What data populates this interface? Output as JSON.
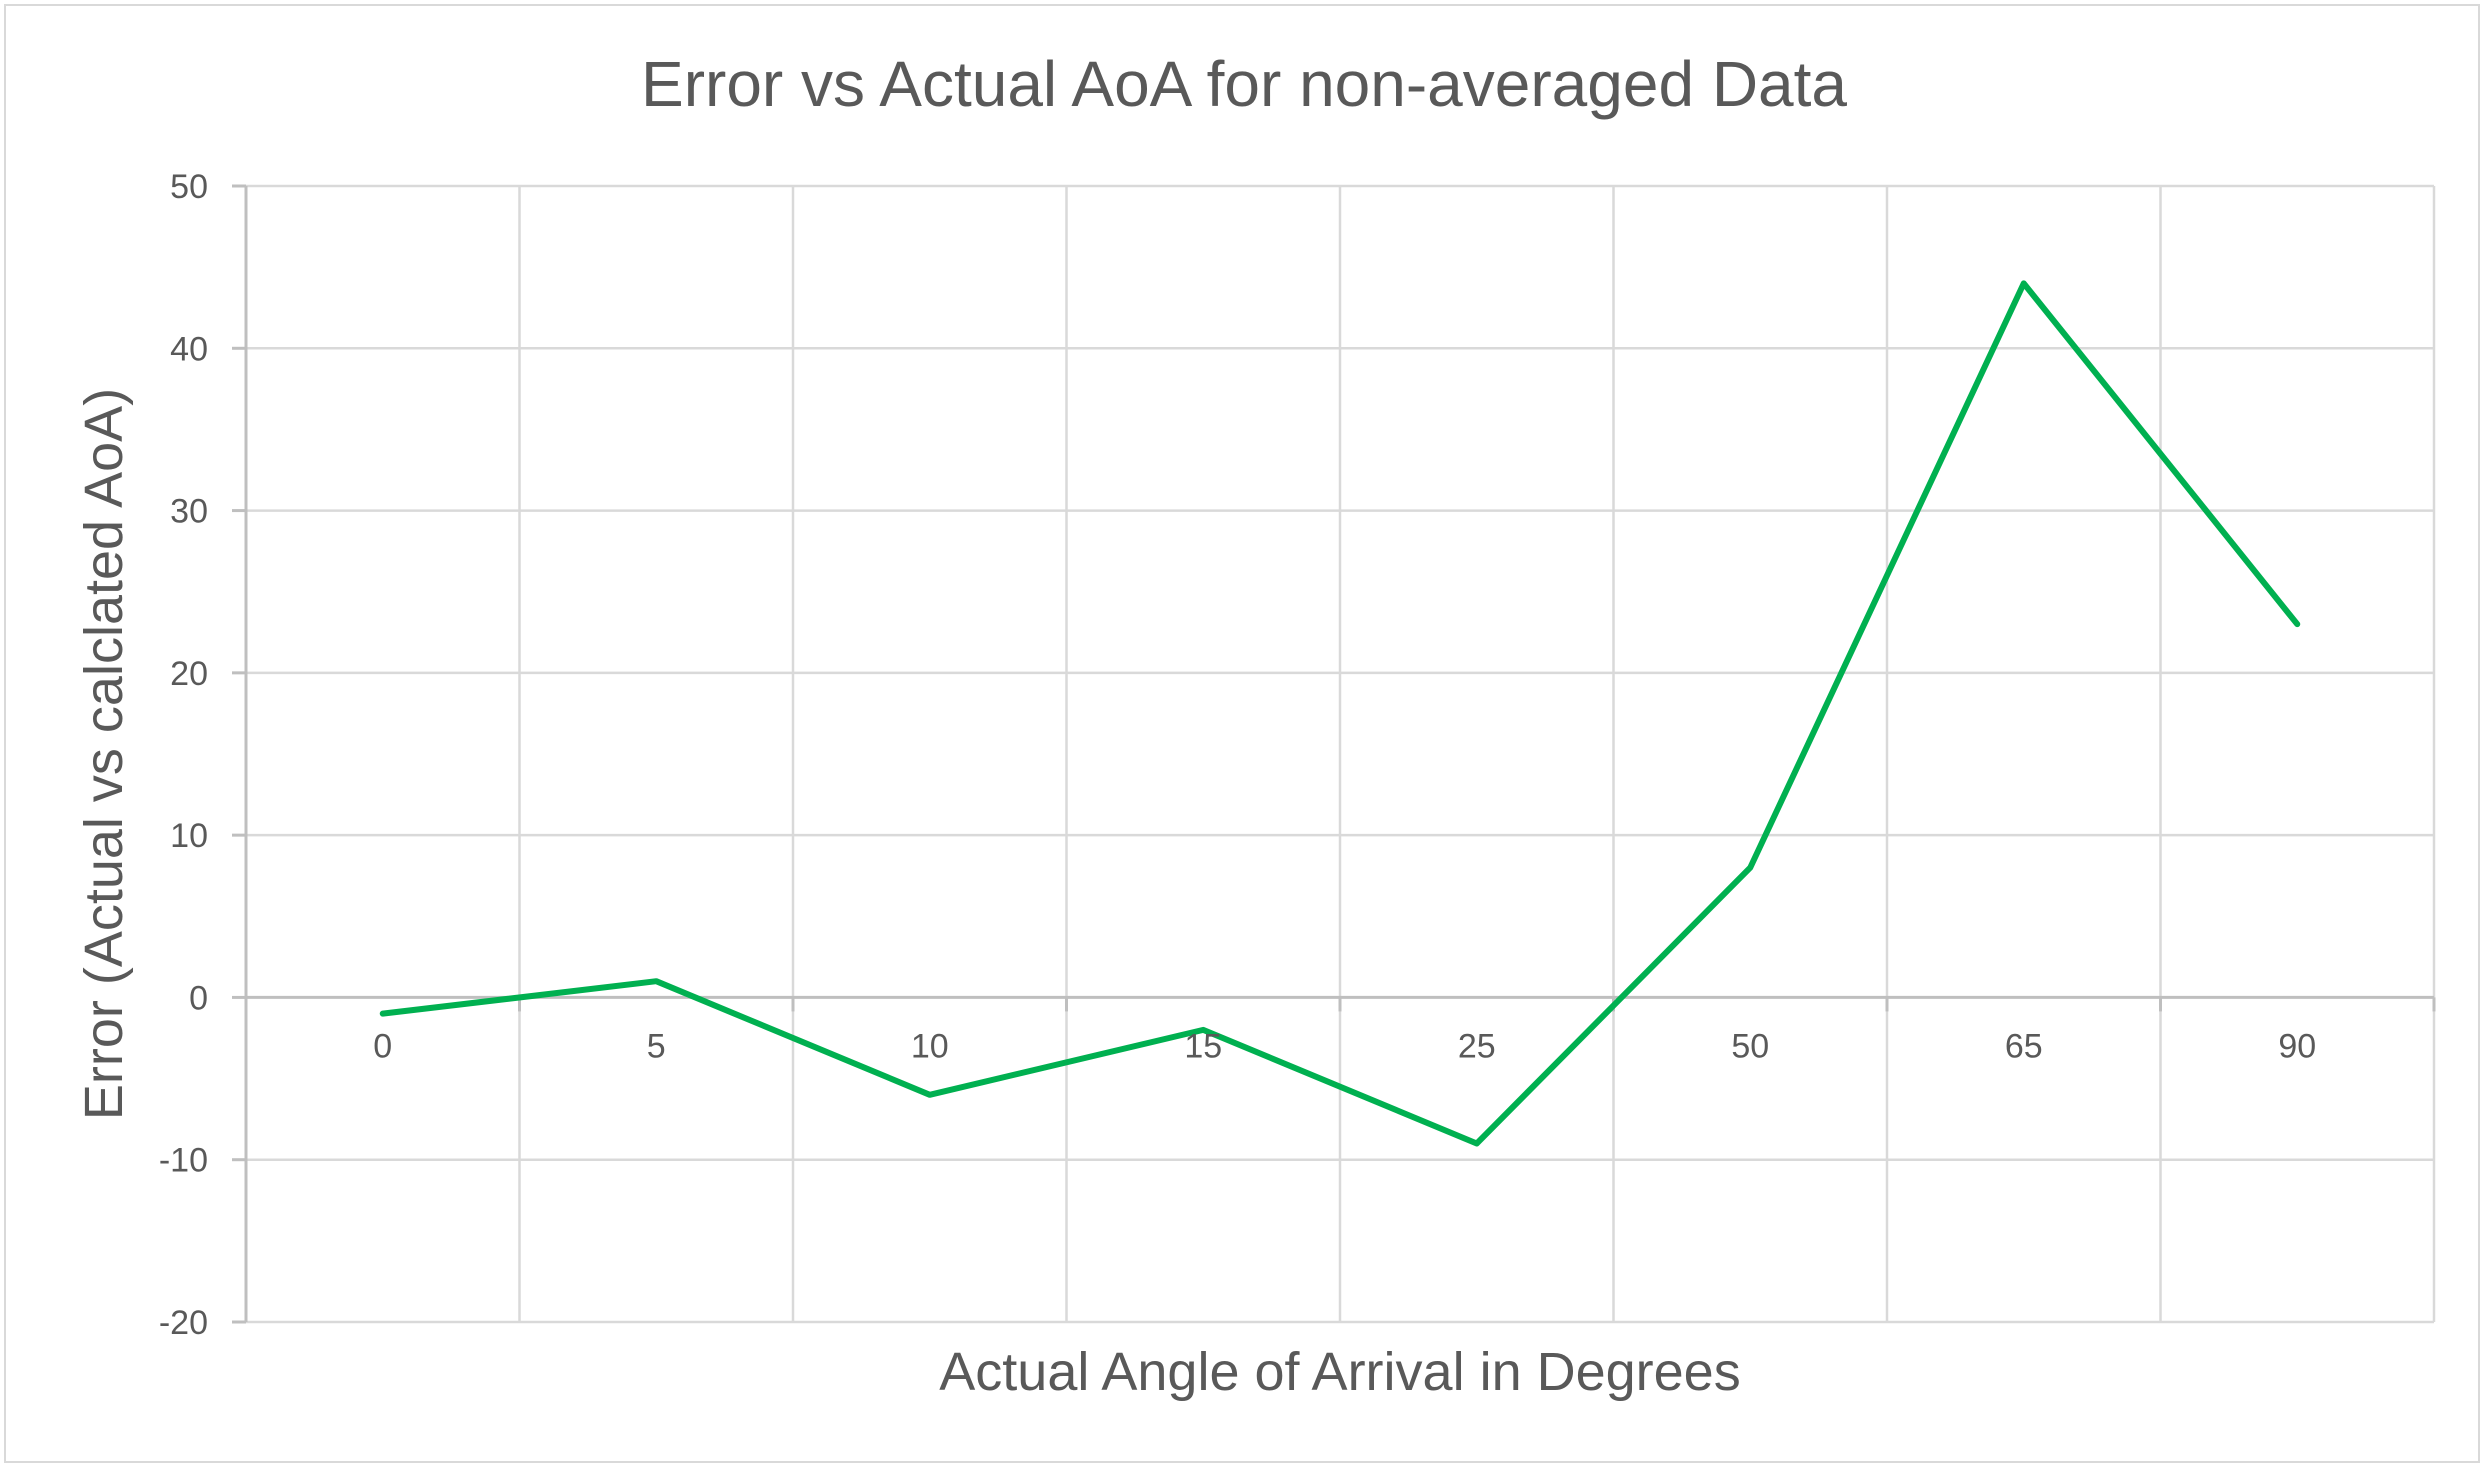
{
  "chart_data": {
    "type": "line",
    "title": "Error vs Actual AoA for non-averaged Data",
    "xlabel": "Actual Angle of Arrival in Degrees",
    "ylabel": "Error (Actual vs calclated AoA)",
    "categories": [
      "0",
      "5",
      "10",
      "15",
      "25",
      "50",
      "65",
      "90"
    ],
    "series": [
      {
        "values": [
          -1,
          1,
          -6,
          -2,
          -9,
          8,
          44,
          23
        ],
        "color": "#00b050"
      }
    ],
    "ylim": [
      -20,
      50
    ],
    "yticks": [
      -20,
      -10,
      0,
      10,
      20,
      30,
      40,
      50
    ],
    "grid": true,
    "legend": "none"
  }
}
